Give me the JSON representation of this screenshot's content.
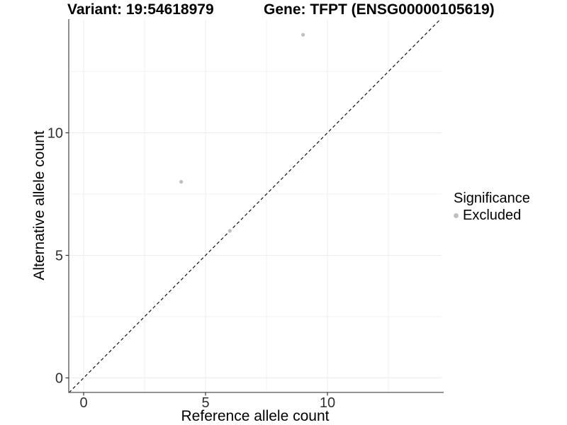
{
  "titles": {
    "variant": "Variant: 19:54618979",
    "gene": "Gene: TFPT (ENSG00000105619)"
  },
  "chart_data": {
    "type": "scatter",
    "title": "Variant: 19:54618979 — Gene: TFPT (ENSG00000105619)",
    "xlabel": "Reference allele count",
    "ylabel": "Alternative allele count",
    "xlim": [
      -0.6,
      14.7
    ],
    "ylim": [
      -0.6,
      14.6
    ],
    "x_major_ticks": [
      0,
      5,
      10
    ],
    "x_minor_ticks": [
      2.5,
      7.5,
      12.5
    ],
    "y_major_ticks": [
      0,
      5,
      10
    ],
    "y_minor_ticks": [
      2.5,
      7.5,
      12.5
    ],
    "grid": "major+minor on white background",
    "identity_line": {
      "type": "abline",
      "slope": 1,
      "intercept": 0,
      "style": "dashed",
      "color": "#111111"
    },
    "series": [
      {
        "name": "Excluded",
        "color": "#bfbfbf",
        "marker": "circle",
        "points": [
          {
            "x": 9,
            "y": 14
          },
          {
            "x": 4,
            "y": 8
          },
          {
            "x": 6,
            "y": 6
          }
        ]
      }
    ],
    "legend": {
      "title": "Significance",
      "position": "right",
      "items": [
        {
          "label": "Excluded",
          "color": "#bfbfbf"
        }
      ]
    }
  },
  "colors": {
    "background": "#ffffff",
    "grid_major": "#ececec",
    "grid_minor": "#f2f2f2",
    "axis_line": "#555555",
    "tick_mark": "#333333",
    "tick_label": "#303030",
    "point": "#bfbfbf",
    "dashed_line": "#111111"
  }
}
